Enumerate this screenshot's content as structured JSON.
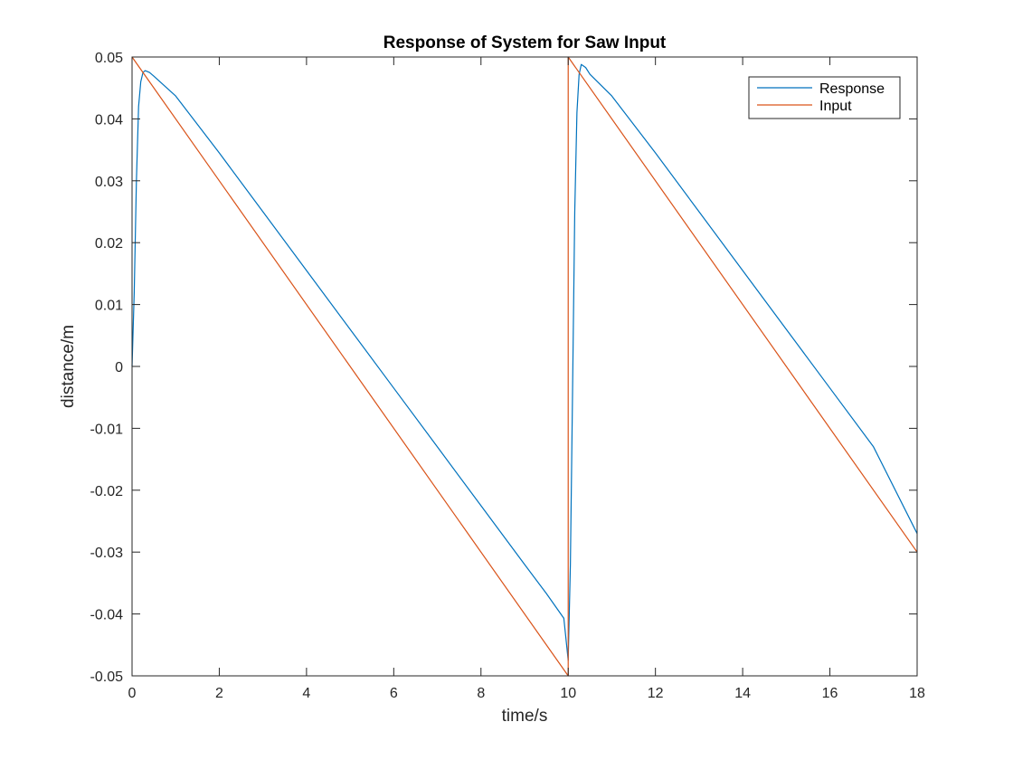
{
  "chart_data": {
    "type": "line",
    "title": "Response of System for Saw Input",
    "xlabel": "time/s",
    "ylabel": "distance/m",
    "xlim": [
      0,
      18
    ],
    "ylim": [
      -0.05,
      0.05
    ],
    "xticks": [
      0,
      2,
      4,
      6,
      8,
      10,
      12,
      14,
      16,
      18
    ],
    "yticks": [
      -0.05,
      -0.04,
      -0.03,
      -0.02,
      -0.01,
      0,
      0.01,
      0.02,
      0.03,
      0.04,
      0.05
    ],
    "xtick_labels": [
      "0",
      "2",
      "4",
      "6",
      "8",
      "10",
      "12",
      "14",
      "16",
      "18"
    ],
    "ytick_labels": [
      "-0.05",
      "-0.04",
      "-0.03",
      "-0.02",
      "-0.01",
      "0",
      "0.01",
      "0.02",
      "0.03",
      "0.04",
      "0.05"
    ],
    "grid": false,
    "legend_position": "top-right",
    "series": [
      {
        "name": "Response",
        "color": "#0072BD",
        "x": [
          0,
          0.05,
          0.1,
          0.15,
          0.2,
          0.25,
          0.3,
          0.4,
          0.5,
          1,
          2,
          3,
          4,
          5,
          6,
          7,
          8,
          9,
          9.5,
          9.9,
          10,
          10.05,
          10.1,
          10.15,
          10.2,
          10.25,
          10.3,
          10.4,
          10.5,
          11,
          12,
          13,
          14,
          15,
          16,
          17,
          18
        ],
        "y": [
          0,
          0.012,
          0.03,
          0.042,
          0.046,
          0.0475,
          0.0478,
          0.0475,
          0.0469,
          0.0437,
          0.0345,
          0.025,
          0.0155,
          0.006,
          -0.0035,
          -0.013,
          -0.0225,
          -0.032,
          -0.0367,
          -0.0407,
          -0.0475,
          -0.032,
          -0.004,
          0.025,
          0.041,
          0.0472,
          0.0488,
          0.0483,
          0.0472,
          0.0437,
          0.0345,
          0.025,
          0.0155,
          0.006,
          -0.0035,
          -0.013,
          -0.027
        ]
      },
      {
        "name": "Input",
        "color": "#D95319",
        "x": [
          0,
          10,
          10,
          18
        ],
        "y": [
          0.05,
          -0.05,
          0.05,
          -0.03
        ]
      }
    ]
  }
}
